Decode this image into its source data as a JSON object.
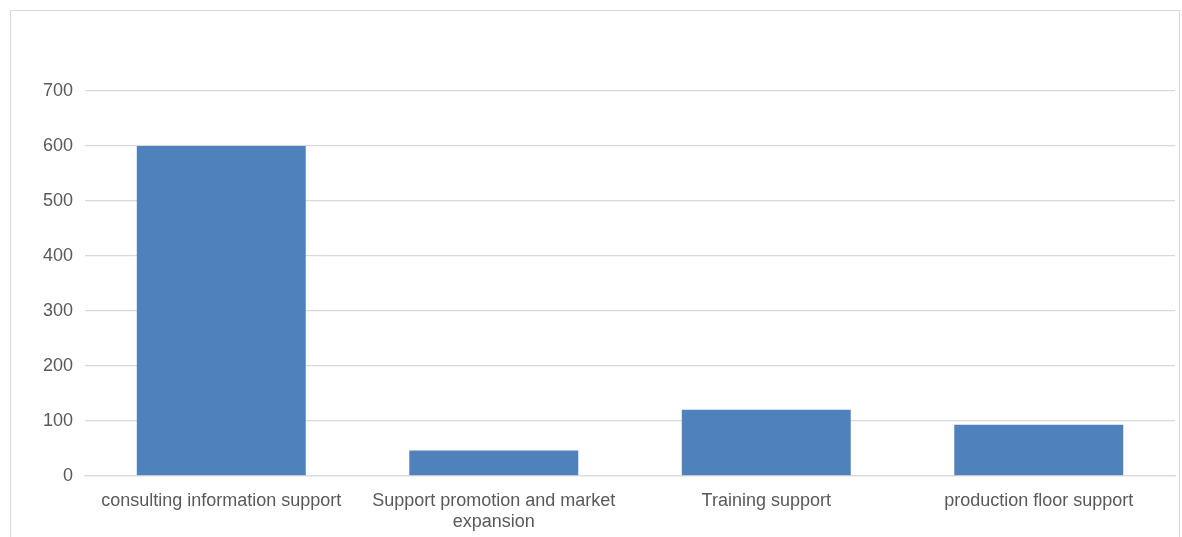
{
  "chart_data": {
    "type": "bar",
    "categories": [
      "consulting information support",
      "Support promotion and market expansion",
      "Training support",
      "production floor support"
    ],
    "values": [
      600,
      46,
      120,
      93
    ],
    "color": "#4f81bd",
    "ylim": [
      0,
      700
    ],
    "yticks": [
      0,
      100,
      200,
      300,
      400,
      500,
      600,
      700
    ],
    "grid": "y",
    "legend": false
  }
}
